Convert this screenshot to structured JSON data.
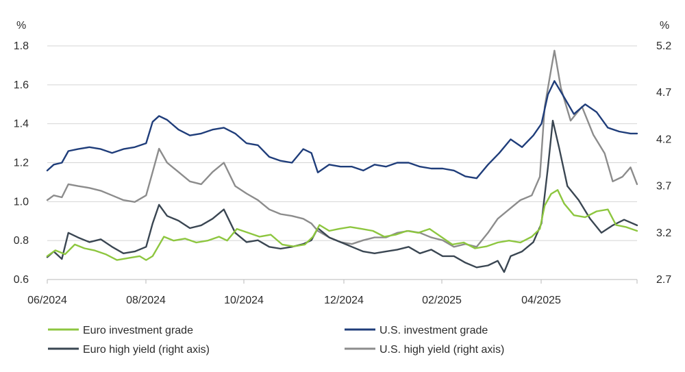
{
  "chart_data": {
    "type": "line",
    "title": "",
    "left_axis": {
      "unit": "%",
      "ylim": [
        0.6,
        1.8
      ],
      "ticks": [
        "0.6",
        "0.8",
        "1.0",
        "1.2",
        "1.4",
        "1.6",
        "1.8"
      ]
    },
    "right_axis": {
      "unit": "%",
      "ylim": [
        2.7,
        5.2
      ],
      "ticks": [
        "2.7",
        "3.2",
        "3.7",
        "4.2",
        "4.7",
        "5.2"
      ]
    },
    "x_axis": {
      "ticks": [
        "06/2024",
        "08/2024",
        "10/2024",
        "12/2024",
        "02/2025",
        "04/2025"
      ],
      "range": [
        "2024-06-01",
        "2025-05-31"
      ]
    },
    "grid": "horizontal",
    "legend_position": "bottom",
    "series": [
      {
        "name": "Euro investment grade",
        "axis": "left",
        "color": "#8dc63f",
        "points": [
          [
            "2024-06-01",
            0.72
          ],
          [
            "2024-06-06",
            0.75
          ],
          [
            "2024-06-12",
            0.73
          ],
          [
            "2024-06-18",
            0.78
          ],
          [
            "2024-06-24",
            0.76
          ],
          [
            "2024-06-30",
            0.75
          ],
          [
            "2024-07-07",
            0.73
          ],
          [
            "2024-07-14",
            0.7
          ],
          [
            "2024-07-21",
            0.71
          ],
          [
            "2024-07-28",
            0.72
          ],
          [
            "2024-08-01",
            0.7
          ],
          [
            "2024-08-05",
            0.72
          ],
          [
            "2024-08-12",
            0.82
          ],
          [
            "2024-08-18",
            0.8
          ],
          [
            "2024-08-25",
            0.81
          ],
          [
            "2024-09-01",
            0.79
          ],
          [
            "2024-09-08",
            0.8
          ],
          [
            "2024-09-15",
            0.82
          ],
          [
            "2024-09-20",
            0.8
          ],
          [
            "2024-09-26",
            0.86
          ],
          [
            "2024-10-03",
            0.84
          ],
          [
            "2024-10-10",
            0.82
          ],
          [
            "2024-10-17",
            0.83
          ],
          [
            "2024-10-24",
            0.78
          ],
          [
            "2024-10-31",
            0.77
          ],
          [
            "2024-11-07",
            0.78
          ],
          [
            "2024-11-12",
            0.82
          ],
          [
            "2024-11-16",
            0.88
          ],
          [
            "2024-11-22",
            0.85
          ],
          [
            "2024-11-28",
            0.86
          ],
          [
            "2024-12-05",
            0.87
          ],
          [
            "2024-12-12",
            0.86
          ],
          [
            "2024-12-19",
            0.85
          ],
          [
            "2024-12-26",
            0.82
          ],
          [
            "2025-01-02",
            0.83
          ],
          [
            "2025-01-09",
            0.85
          ],
          [
            "2025-01-16",
            0.84
          ],
          [
            "2025-01-23",
            0.86
          ],
          [
            "2025-01-30",
            0.82
          ],
          [
            "2025-02-06",
            0.78
          ],
          [
            "2025-02-13",
            0.79
          ],
          [
            "2025-02-20",
            0.76
          ],
          [
            "2025-02-27",
            0.77
          ],
          [
            "2025-03-06",
            0.79
          ],
          [
            "2025-03-13",
            0.8
          ],
          [
            "2025-03-20",
            0.79
          ],
          [
            "2025-03-27",
            0.82
          ],
          [
            "2025-04-01",
            0.86
          ],
          [
            "2025-04-04",
            0.98
          ],
          [
            "2025-04-08",
            1.04
          ],
          [
            "2025-04-12",
            1.06
          ],
          [
            "2025-04-16",
            0.99
          ],
          [
            "2025-04-22",
            0.93
          ],
          [
            "2025-04-29",
            0.92
          ],
          [
            "2025-05-06",
            0.95
          ],
          [
            "2025-05-13",
            0.96
          ],
          [
            "2025-05-18",
            0.88
          ],
          [
            "2025-05-24",
            0.87
          ],
          [
            "2025-05-31",
            0.85
          ]
        ]
      },
      {
        "name": "U.S. investment grade",
        "axis": "left",
        "color": "#1f3d7a",
        "points": [
          [
            "2024-06-01",
            1.16
          ],
          [
            "2024-06-05",
            1.19
          ],
          [
            "2024-06-10",
            1.2
          ],
          [
            "2024-06-14",
            1.26
          ],
          [
            "2024-06-20",
            1.27
          ],
          [
            "2024-06-27",
            1.28
          ],
          [
            "2024-07-04",
            1.27
          ],
          [
            "2024-07-11",
            1.25
          ],
          [
            "2024-07-18",
            1.27
          ],
          [
            "2024-07-25",
            1.28
          ],
          [
            "2024-08-01",
            1.3
          ],
          [
            "2024-08-05",
            1.41
          ],
          [
            "2024-08-09",
            1.44
          ],
          [
            "2024-08-14",
            1.42
          ],
          [
            "2024-08-21",
            1.37
          ],
          [
            "2024-08-28",
            1.34
          ],
          [
            "2024-09-04",
            1.35
          ],
          [
            "2024-09-11",
            1.37
          ],
          [
            "2024-09-18",
            1.38
          ],
          [
            "2024-09-25",
            1.35
          ],
          [
            "2024-10-02",
            1.3
          ],
          [
            "2024-10-09",
            1.29
          ],
          [
            "2024-10-16",
            1.23
          ],
          [
            "2024-10-23",
            1.21
          ],
          [
            "2024-10-30",
            1.2
          ],
          [
            "2024-11-06",
            1.27
          ],
          [
            "2024-11-11",
            1.25
          ],
          [
            "2024-11-15",
            1.15
          ],
          [
            "2024-11-22",
            1.19
          ],
          [
            "2024-11-29",
            1.18
          ],
          [
            "2024-12-06",
            1.18
          ],
          [
            "2024-12-13",
            1.16
          ],
          [
            "2024-12-20",
            1.19
          ],
          [
            "2024-12-27",
            1.18
          ],
          [
            "2025-01-03",
            1.2
          ],
          [
            "2025-01-10",
            1.2
          ],
          [
            "2025-01-17",
            1.18
          ],
          [
            "2025-01-24",
            1.17
          ],
          [
            "2025-01-31",
            1.17
          ],
          [
            "2025-02-07",
            1.16
          ],
          [
            "2025-02-14",
            1.13
          ],
          [
            "2025-02-21",
            1.12
          ],
          [
            "2025-02-28",
            1.19
          ],
          [
            "2025-03-07",
            1.25
          ],
          [
            "2025-03-14",
            1.32
          ],
          [
            "2025-03-21",
            1.28
          ],
          [
            "2025-03-28",
            1.34
          ],
          [
            "2025-04-02",
            1.4
          ],
          [
            "2025-04-06",
            1.55
          ],
          [
            "2025-04-10",
            1.62
          ],
          [
            "2025-04-15",
            1.55
          ],
          [
            "2025-04-22",
            1.45
          ],
          [
            "2025-04-29",
            1.5
          ],
          [
            "2025-05-06",
            1.46
          ],
          [
            "2025-05-13",
            1.38
          ],
          [
            "2025-05-20",
            1.36
          ],
          [
            "2025-05-27",
            1.35
          ],
          [
            "2025-05-31",
            1.35
          ]
        ]
      },
      {
        "name": "Euro high yield (right axis)",
        "axis": "right",
        "color": "#3a4652",
        "points": [
          [
            "2024-06-01",
            2.94
          ],
          [
            "2024-06-05",
            3.0
          ],
          [
            "2024-06-10",
            2.92
          ],
          [
            "2024-06-14",
            3.2
          ],
          [
            "2024-06-20",
            3.15
          ],
          [
            "2024-06-27",
            3.1
          ],
          [
            "2024-07-04",
            3.13
          ],
          [
            "2024-07-11",
            3.05
          ],
          [
            "2024-07-18",
            2.98
          ],
          [
            "2024-07-25",
            3.0
          ],
          [
            "2024-08-01",
            3.05
          ],
          [
            "2024-08-05",
            3.3
          ],
          [
            "2024-08-09",
            3.5
          ],
          [
            "2024-08-14",
            3.38
          ],
          [
            "2024-08-21",
            3.33
          ],
          [
            "2024-08-28",
            3.25
          ],
          [
            "2024-09-04",
            3.28
          ],
          [
            "2024-09-11",
            3.35
          ],
          [
            "2024-09-18",
            3.45
          ],
          [
            "2024-09-25",
            3.2
          ],
          [
            "2024-10-02",
            3.1
          ],
          [
            "2024-10-09",
            3.12
          ],
          [
            "2024-10-16",
            3.05
          ],
          [
            "2024-10-23",
            3.03
          ],
          [
            "2024-10-30",
            3.05
          ],
          [
            "2024-11-06",
            3.08
          ],
          [
            "2024-11-11",
            3.12
          ],
          [
            "2024-11-15",
            3.25
          ],
          [
            "2024-11-22",
            3.15
          ],
          [
            "2024-11-29",
            3.1
          ],
          [
            "2024-12-06",
            3.05
          ],
          [
            "2024-12-13",
            3.0
          ],
          [
            "2024-12-20",
            2.98
          ],
          [
            "2024-12-27",
            3.0
          ],
          [
            "2025-01-03",
            3.02
          ],
          [
            "2025-01-10",
            3.05
          ],
          [
            "2025-01-17",
            2.98
          ],
          [
            "2025-01-24",
            3.02
          ],
          [
            "2025-01-31",
            2.95
          ],
          [
            "2025-02-07",
            2.95
          ],
          [
            "2025-02-14",
            2.88
          ],
          [
            "2025-02-21",
            2.83
          ],
          [
            "2025-02-28",
            2.85
          ],
          [
            "2025-03-06",
            2.9
          ],
          [
            "2025-03-10",
            2.78
          ],
          [
            "2025-03-14",
            2.95
          ],
          [
            "2025-03-21",
            3.0
          ],
          [
            "2025-03-28",
            3.1
          ],
          [
            "2025-04-02",
            3.3
          ],
          [
            "2025-04-06",
            3.9
          ],
          [
            "2025-04-09",
            4.4
          ],
          [
            "2025-04-13",
            4.1
          ],
          [
            "2025-04-18",
            3.7
          ],
          [
            "2025-04-25",
            3.55
          ],
          [
            "2025-05-02",
            3.35
          ],
          [
            "2025-05-09",
            3.2
          ],
          [
            "2025-05-16",
            3.28
          ],
          [
            "2025-05-23",
            3.34
          ],
          [
            "2025-05-31",
            3.28
          ]
        ]
      },
      {
        "name": "U.S. high yield (right axis)",
        "axis": "right",
        "color": "#8c8c8c",
        "points": [
          [
            "2024-06-01",
            3.55
          ],
          [
            "2024-06-05",
            3.6
          ],
          [
            "2024-06-10",
            3.58
          ],
          [
            "2024-06-14",
            3.72
          ],
          [
            "2024-06-20",
            3.7
          ],
          [
            "2024-06-27",
            3.68
          ],
          [
            "2024-07-04",
            3.65
          ],
          [
            "2024-07-11",
            3.6
          ],
          [
            "2024-07-18",
            3.55
          ],
          [
            "2024-07-25",
            3.53
          ],
          [
            "2024-08-01",
            3.6
          ],
          [
            "2024-08-05",
            3.85
          ],
          [
            "2024-08-09",
            4.1
          ],
          [
            "2024-08-14",
            3.95
          ],
          [
            "2024-08-21",
            3.85
          ],
          [
            "2024-08-28",
            3.75
          ],
          [
            "2024-09-04",
            3.72
          ],
          [
            "2024-09-11",
            3.85
          ],
          [
            "2024-09-18",
            3.95
          ],
          [
            "2024-09-25",
            3.7
          ],
          [
            "2024-10-02",
            3.62
          ],
          [
            "2024-10-09",
            3.55
          ],
          [
            "2024-10-16",
            3.45
          ],
          [
            "2024-10-23",
            3.4
          ],
          [
            "2024-10-30",
            3.38
          ],
          [
            "2024-11-06",
            3.35
          ],
          [
            "2024-11-11",
            3.3
          ],
          [
            "2024-11-15",
            3.22
          ],
          [
            "2024-11-22",
            3.15
          ],
          [
            "2024-11-29",
            3.1
          ],
          [
            "2024-12-06",
            3.08
          ],
          [
            "2024-12-13",
            3.12
          ],
          [
            "2024-12-20",
            3.15
          ],
          [
            "2024-12-27",
            3.15
          ],
          [
            "2025-01-03",
            3.2
          ],
          [
            "2025-01-10",
            3.22
          ],
          [
            "2025-01-17",
            3.2
          ],
          [
            "2025-01-24",
            3.15
          ],
          [
            "2025-01-31",
            3.12
          ],
          [
            "2025-02-07",
            3.05
          ],
          [
            "2025-02-14",
            3.08
          ],
          [
            "2025-02-21",
            3.05
          ],
          [
            "2025-02-28",
            3.2
          ],
          [
            "2025-03-06",
            3.35
          ],
          [
            "2025-03-13",
            3.45
          ],
          [
            "2025-03-20",
            3.55
          ],
          [
            "2025-03-27",
            3.6
          ],
          [
            "2025-04-01",
            3.8
          ],
          [
            "2025-04-04",
            4.55
          ],
          [
            "2025-04-08",
            4.95
          ],
          [
            "2025-04-10",
            5.15
          ],
          [
            "2025-04-14",
            4.75
          ],
          [
            "2025-04-20",
            4.4
          ],
          [
            "2025-04-27",
            4.55
          ],
          [
            "2025-05-04",
            4.25
          ],
          [
            "2025-05-11",
            4.05
          ],
          [
            "2025-05-16",
            3.75
          ],
          [
            "2025-05-22",
            3.8
          ],
          [
            "2025-05-27",
            3.9
          ],
          [
            "2025-05-31",
            3.72
          ]
        ]
      }
    ]
  }
}
